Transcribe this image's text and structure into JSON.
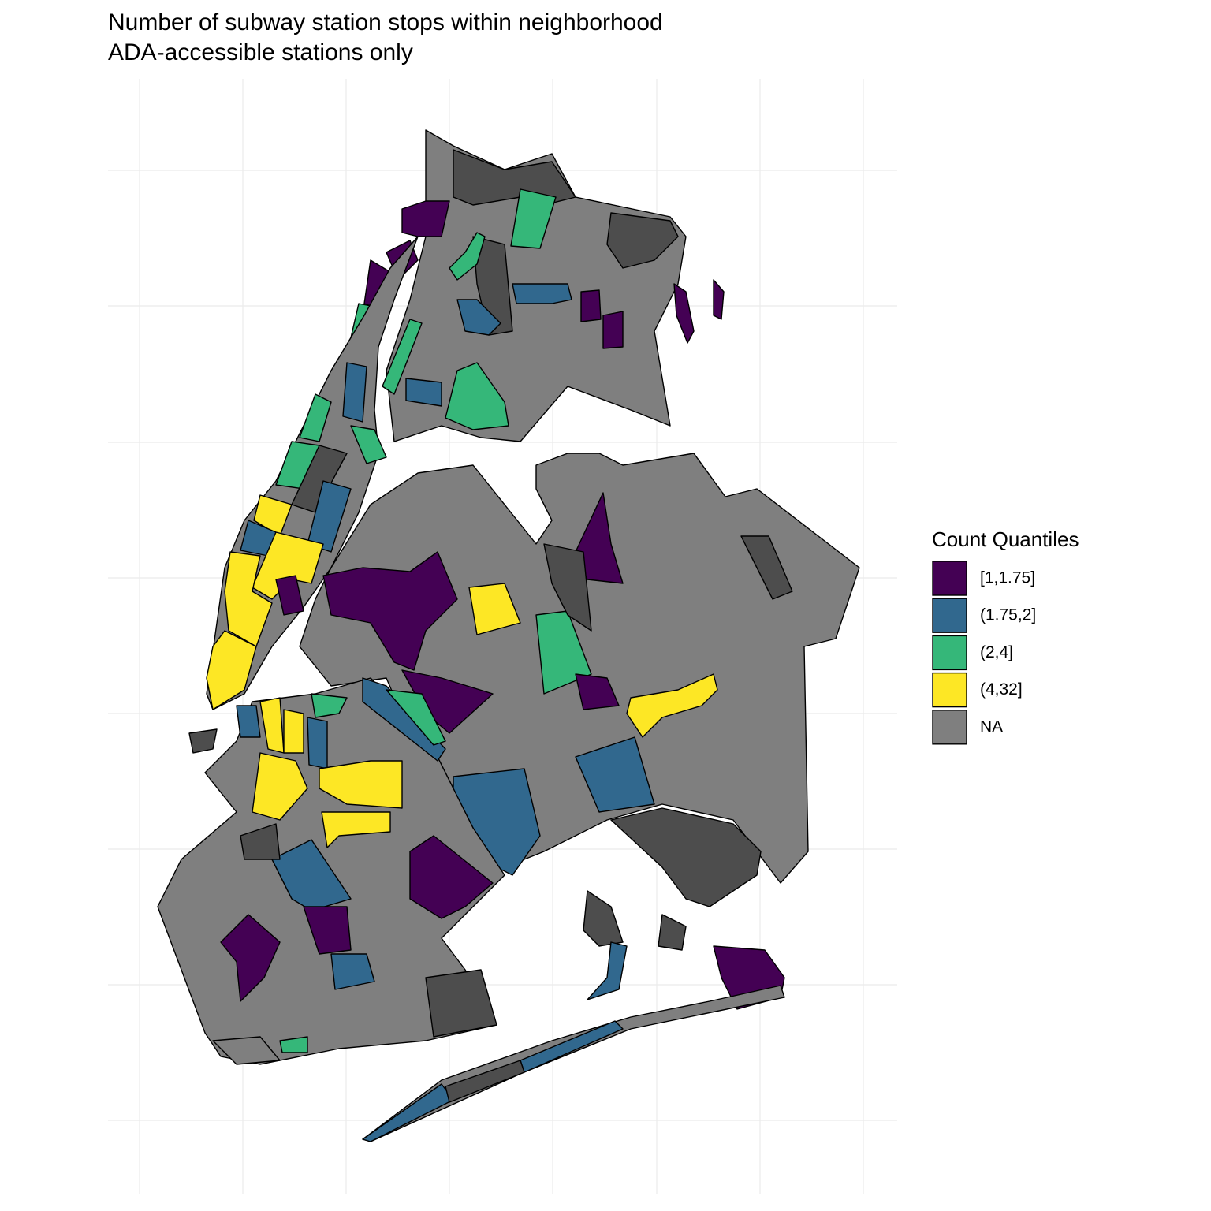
{
  "title": "Number of subway station stops within neighborhood",
  "subtitle": "ADA-accessible stations only",
  "legend": {
    "title": "Count Quantiles",
    "items": [
      {
        "label": "[1,1.75]",
        "color": "#440154"
      },
      {
        "label": "(1.75,2]",
        "color": "#31688e"
      },
      {
        "label": "(2,4]",
        "color": "#35b779"
      },
      {
        "label": "(4,32]",
        "color": "#fde725"
      },
      {
        "label": "NA",
        "color": "#7f7f7f"
      }
    ]
  }
}
